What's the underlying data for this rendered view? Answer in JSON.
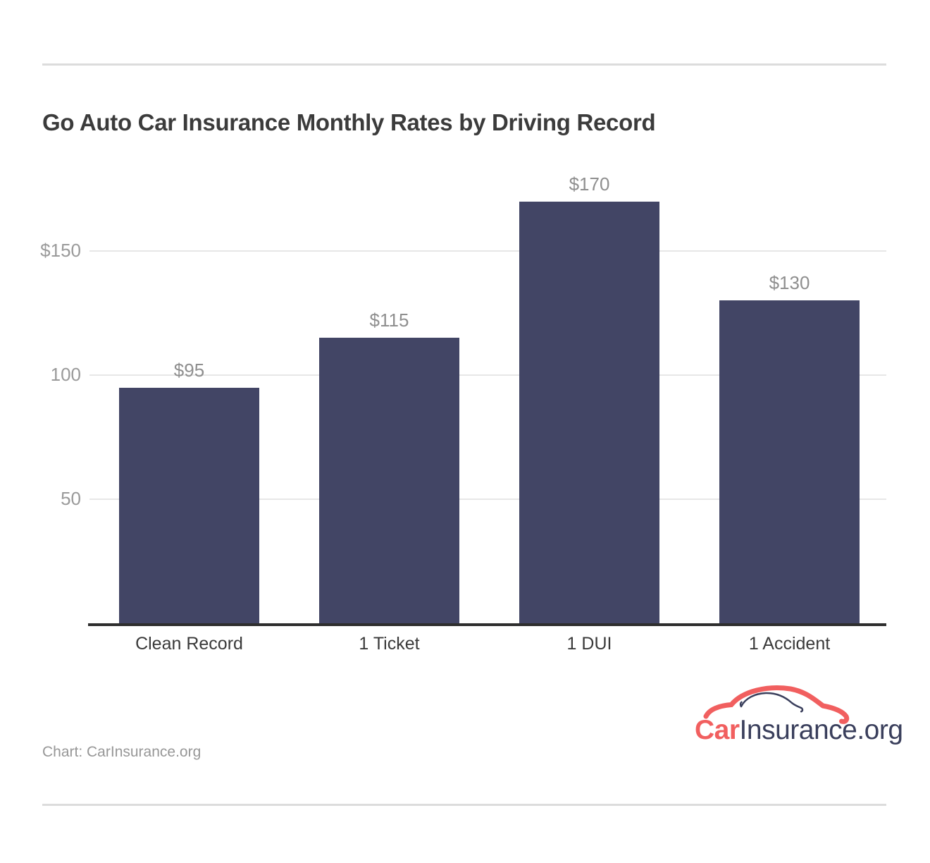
{
  "header": {
    "title": "Go Auto Car Insurance Monthly Rates by Driving Record"
  },
  "chart_data": {
    "type": "bar",
    "title": "Go Auto Car Insurance Monthly Rates by Driving Record",
    "categories": [
      "Clean Record",
      "1 Ticket",
      "1 DUI",
      "1 Accident"
    ],
    "values": [
      95,
      115,
      170,
      130
    ],
    "data_labels": [
      "$95",
      "$115",
      "$170",
      "$130"
    ],
    "y_ticks": [
      {
        "label": "$150",
        "value": 150
      },
      {
        "label": "100",
        "value": 100
      },
      {
        "label": "50",
        "value": 50
      }
    ],
    "ylim": [
      0,
      193
    ],
    "grid": true,
    "legend": "none",
    "bar_color": "#424565",
    "gridline_color": "#e7e7e7",
    "axis_label_color": "#9a9a9a",
    "value_label_color": "#8f8f8f",
    "category_label_color": "#3a3a3a",
    "baseline_color": "#2e2e2e"
  },
  "logo": {
    "part1": "Car",
    "part2": "Insurance",
    "part3": ".org",
    "coral": "#F15F5F",
    "navy": "#3A3F5C"
  },
  "footer": {
    "credit": "Chart: CarInsurance.org"
  }
}
